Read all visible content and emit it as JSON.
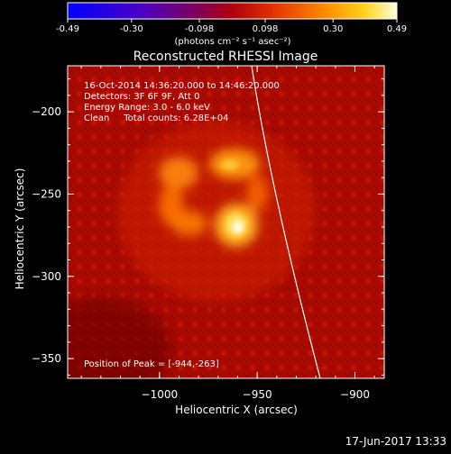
{
  "colorbar": {
    "ticks": [
      "-0.49",
      "-0.30",
      "-0.098",
      "0.098",
      "0.30",
      "0.49"
    ],
    "units": "(photons cm⁻² s⁻¹ asec⁻²)"
  },
  "title": "Reconstructed RHESSI Image",
  "info": {
    "line1": "16-Oct-2014 14:36:20.000 to 14:46:20.000",
    "line2": "Detectors: 3F 6F 9F, Att 0",
    "line3": "Energy Range: 3.0 - 6.0 keV",
    "line4": "Clean     Total counts: 6.28E+04"
  },
  "peak": "Position of Peak = [-944,-263]",
  "axes": {
    "xlabel": "Heliocentric X (arcsec)",
    "ylabel": "Heliocentric Y (arcsec)",
    "xticks": [
      "-1000",
      "-950",
      "-900"
    ],
    "yticks": [
      "-200",
      "-250",
      "-300",
      "-350"
    ]
  },
  "date": "17-Jun-2017 13:33",
  "chart_data": {
    "type": "heatmap",
    "title": "Reconstructed RHESSI Image",
    "xlabel": "Heliocentric X (arcsec)",
    "ylabel": "Heliocentric Y (arcsec)",
    "xlim": [
      -1047,
      -885
    ],
    "ylim": [
      -362,
      -172
    ],
    "colorbar_range": [
      -0.49,
      0.49
    ],
    "peak": [
      -944,
      -263
    ],
    "sources": [
      {
        "x": -944,
        "y": -263,
        "intensity": 0.49
      },
      {
        "x": -952,
        "y": -228,
        "intensity": 0.35
      },
      {
        "x": -975,
        "y": -232,
        "intensity": 0.3
      },
      {
        "x": -970,
        "y": -258,
        "intensity": 0.25
      }
    ],
    "colors": {
      "limb": "#ffffff",
      "background": "#000000"
    }
  }
}
